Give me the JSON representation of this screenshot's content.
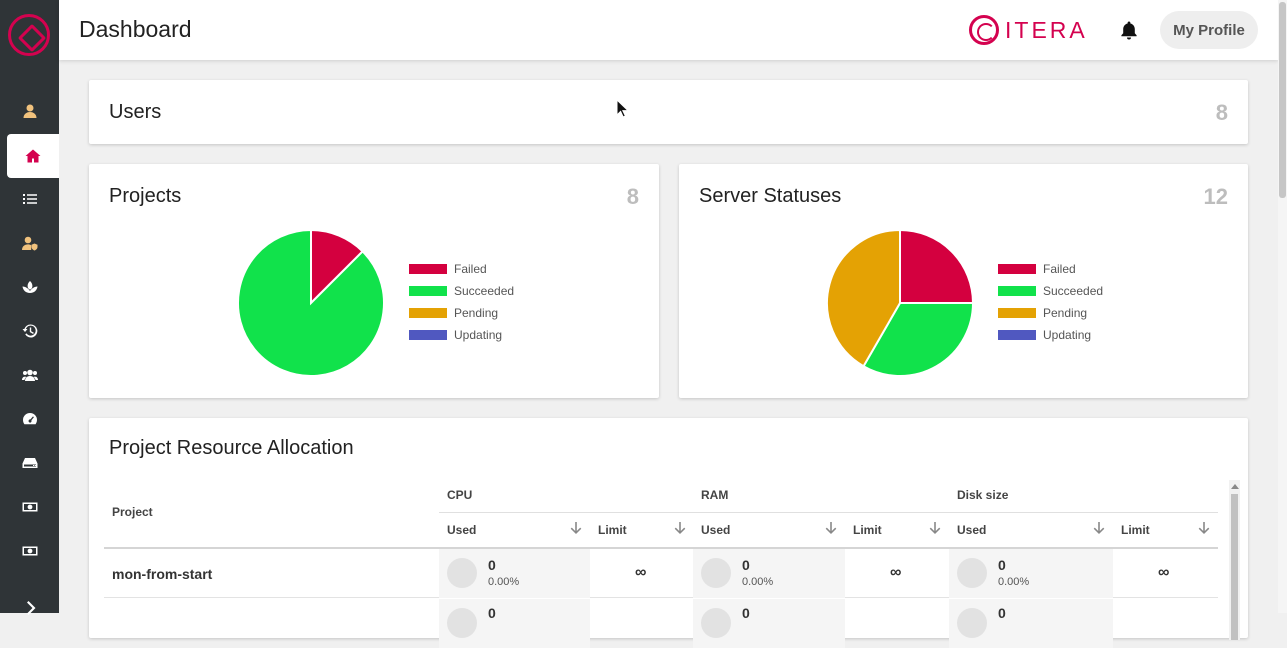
{
  "header": {
    "title": "Dashboard",
    "brand": "ITERA",
    "profile_label": "My Profile"
  },
  "sidebar": {
    "items": [
      {
        "name": "user-icon"
      },
      {
        "name": "home-icon",
        "active": true
      },
      {
        "name": "tasks-icon"
      },
      {
        "name": "user-shield-icon"
      },
      {
        "name": "seedling-icon"
      },
      {
        "name": "history-icon"
      },
      {
        "name": "users-icon"
      },
      {
        "name": "dashboard-gauge-icon"
      },
      {
        "name": "hdd-icon"
      },
      {
        "name": "money-icon"
      },
      {
        "name": "money-icon-2"
      }
    ],
    "expand_icon": "chevron-right-icon"
  },
  "users_card": {
    "title": "Users",
    "count": "8"
  },
  "projects_card": {
    "title": "Projects",
    "count": "8",
    "legend": [
      "Failed",
      "Succeeded",
      "Pending",
      "Updating"
    ]
  },
  "servers_card": {
    "title": "Server Statuses",
    "count": "12",
    "legend": [
      "Failed",
      "Succeeded",
      "Pending",
      "Updating"
    ]
  },
  "colors": {
    "accent": "#d4024f",
    "failed": "#d4003f",
    "succeeded": "#11e24b",
    "pending": "#e4a204",
    "updating": "#5058c0"
  },
  "chart_data": [
    {
      "type": "pie",
      "title": "Projects",
      "categories": [
        "Failed",
        "Succeeded",
        "Pending",
        "Updating"
      ],
      "values": [
        1,
        7,
        0,
        0
      ]
    },
    {
      "type": "pie",
      "title": "Server Statuses",
      "categories": [
        "Failed",
        "Succeeded",
        "Pending",
        "Updating"
      ],
      "values": [
        3,
        4,
        5,
        0
      ]
    }
  ],
  "resource_card": {
    "title": "Project Resource Allocation",
    "project_header": "Project",
    "groups": [
      "CPU",
      "RAM",
      "Disk size"
    ],
    "used_label": "Used",
    "limit_label": "Limit",
    "rows": [
      {
        "project": "mon-from-start",
        "cpu": {
          "used": "0",
          "pct": "0.00%",
          "limit": "∞"
        },
        "ram": {
          "used": "0",
          "pct": "0.00%",
          "limit": "∞"
        },
        "disk": {
          "used": "0",
          "pct": "0.00%",
          "limit": "∞"
        }
      },
      {
        "project": "",
        "cpu": {
          "used": "0"
        },
        "ram": {
          "used": "0"
        },
        "disk": {
          "used": "0"
        }
      }
    ]
  }
}
